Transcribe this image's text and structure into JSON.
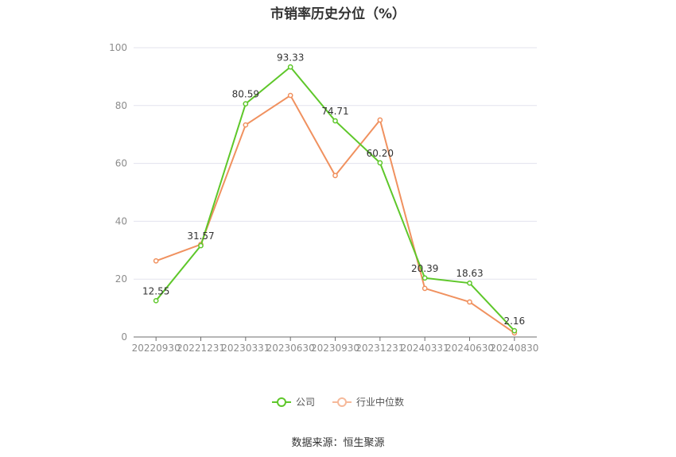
{
  "chart_data": {
    "type": "line",
    "title": "市销率历史分位（%）",
    "categories": [
      "20220930",
      "20221231",
      "20230331",
      "20230630",
      "20230930",
      "20231231",
      "20240331",
      "20240630",
      "20240830"
    ],
    "ylim": [
      0,
      100
    ],
    "yticks": [
      0,
      20,
      40,
      60,
      80,
      100
    ],
    "grid": true,
    "legend_position": "bottom",
    "series": [
      {
        "name": "公司",
        "color": "#5ec72a",
        "values": [
          12.55,
          31.57,
          80.59,
          93.33,
          74.71,
          60.2,
          20.39,
          18.63,
          2.16
        ],
        "labels": [
          "12.55",
          "31.57",
          "80.59",
          "93.33",
          "74.71",
          "60.20",
          "20.39",
          "18.63",
          "2.16"
        ]
      },
      {
        "name": "行业中位数",
        "color": "#f0915f",
        "values": [
          26.3,
          32.0,
          73.3,
          83.5,
          55.8,
          75.0,
          16.8,
          12.1,
          1.4
        ]
      }
    ]
  },
  "source": "数据来源：恒生聚源"
}
